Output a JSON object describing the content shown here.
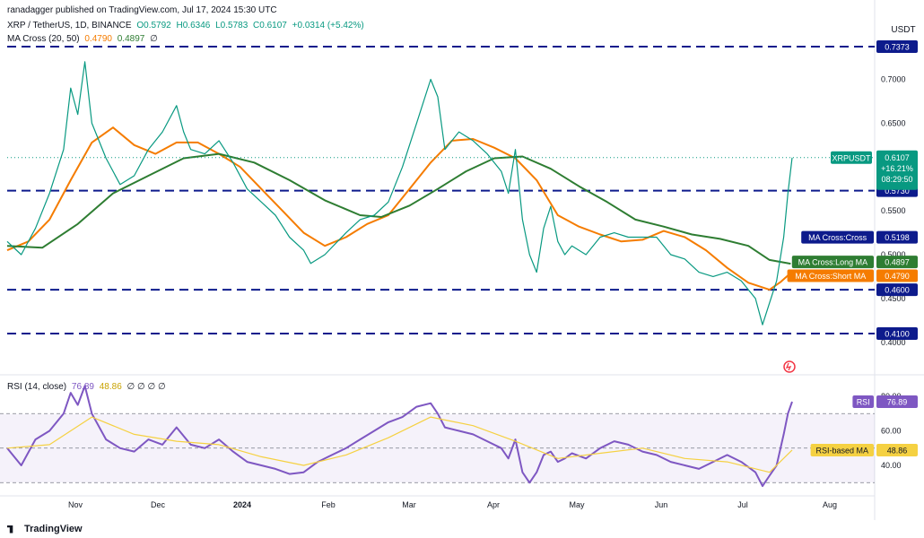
{
  "header": {
    "publisher": "ranadagger published on TradingView.com, Jul 17, 2024 15:30 UTC",
    "symbol": "XRP / TetherUS, 1D, BINANCE",
    "open": "O0.5792",
    "high": "H0.6346",
    "low": "L0.5783",
    "close": "C0.6107",
    "change": "+0.0314 (+5.42%)",
    "ma_label": "MA Cross (20, 50)",
    "ma_short": "0.4790",
    "ma_long": "0.4897",
    "ma_zero": "∅",
    "currency": "USDT"
  },
  "rsi_header": {
    "label": "RSI (14, close)",
    "rsi": "76.89",
    "rsi_ma": "48.86",
    "zeros": "∅ ∅ ∅ ∅"
  },
  "logo": {
    "text": "TradingView"
  },
  "colors": {
    "up": "#089981",
    "down": "#f23645",
    "ma_short": "#f57c00",
    "ma_long": "#2e7d32",
    "rsi": "#7e57c2",
    "rsi_ma": "#f5d142",
    "level_line": "#0d1b8c",
    "price_tag": "#0d1b8c"
  },
  "chart_data": [
    {
      "type": "candlestick",
      "title": "XRP / TetherUS, 1D, BINANCE",
      "x_tick_labels": [
        "Nov",
        "Dec",
        "2024",
        "Feb",
        "Mar",
        "Apr",
        "May",
        "Jun",
        "Jul",
        "Aug"
      ],
      "y_tick_labels": [
        "0.4000",
        "0.4500",
        "0.5000",
        "0.5500",
        "0.6000",
        "0.6500",
        "0.7000"
      ],
      "ylim": [
        0.375,
        0.748
      ],
      "support_resistance_levels": [
        {
          "label": "0.7373",
          "value": 0.7373
        },
        {
          "label": "0.5730",
          "value": 0.573
        },
        {
          "label": "0.4600",
          "value": 0.46
        },
        {
          "label": "0.4100",
          "value": 0.41
        }
      ],
      "price_labels": [
        {
          "label": "XRPUSDT",
          "value": "0.6107",
          "change": "+16.21%",
          "countdown": "08:29:50"
        },
        {
          "label": "MA Cross:Cross",
          "value": "0.5198"
        },
        {
          "label": "MA Cross:Long MA",
          "value": "0.4897"
        },
        {
          "label": "MA Cross:Short MA",
          "value": "0.4790"
        }
      ],
      "grid": false,
      "series": [
        {
          "name": "MA Cross Short MA (20)",
          "kind": "line",
          "points": [
            [
              0,
              0.505
            ],
            [
              15,
              0.515
            ],
            [
              30,
              0.54
            ],
            [
              45,
              0.585
            ],
            [
              60,
              0.628
            ],
            [
              75,
              0.645
            ],
            [
              90,
              0.625
            ],
            [
              105,
              0.615
            ],
            [
              120,
              0.628
            ],
            [
              135,
              0.628
            ],
            [
              150,
              0.615
            ],
            [
              165,
              0.6
            ],
            [
              180,
              0.575
            ],
            [
              195,
              0.55
            ],
            [
              210,
              0.525
            ],
            [
              225,
              0.51
            ],
            [
              240,
              0.52
            ],
            [
              255,
              0.535
            ],
            [
              270,
              0.545
            ],
            [
              285,
              0.575
            ],
            [
              300,
              0.605
            ],
            [
              315,
              0.63
            ],
            [
              330,
              0.632
            ],
            [
              345,
              0.622
            ],
            [
              360,
              0.61
            ],
            [
              375,
              0.585
            ],
            [
              390,
              0.545
            ],
            [
              405,
              0.532
            ],
            [
              420,
              0.523
            ],
            [
              435,
              0.515
            ],
            [
              450,
              0.517
            ],
            [
              465,
              0.527
            ],
            [
              480,
              0.52
            ],
            [
              495,
              0.505
            ],
            [
              510,
              0.485
            ],
            [
              525,
              0.468
            ],
            [
              540,
              0.46
            ],
            [
              548,
              0.469
            ],
            [
              555,
              0.479
            ]
          ]
        },
        {
          "name": "MA Cross Long MA (50)",
          "kind": "line",
          "points": [
            [
              0,
              0.51
            ],
            [
              25,
              0.508
            ],
            [
              50,
              0.535
            ],
            [
              75,
              0.57
            ],
            [
              100,
              0.59
            ],
            [
              125,
              0.61
            ],
            [
              150,
              0.615
            ],
            [
              175,
              0.605
            ],
            [
              200,
              0.585
            ],
            [
              225,
              0.562
            ],
            [
              250,
              0.545
            ],
            [
              265,
              0.543
            ],
            [
              285,
              0.556
            ],
            [
              305,
              0.575
            ],
            [
              325,
              0.595
            ],
            [
              345,
              0.61
            ],
            [
              365,
              0.612
            ],
            [
              385,
              0.598
            ],
            [
              405,
              0.578
            ],
            [
              425,
              0.56
            ],
            [
              445,
              0.54
            ],
            [
              465,
              0.532
            ],
            [
              485,
              0.523
            ],
            [
              505,
              0.518
            ],
            [
              525,
              0.51
            ],
            [
              540,
              0.494
            ],
            [
              555,
              0.4897
            ]
          ]
        },
        {
          "name": "XRP / TetherUS",
          "kind": "price-path",
          "points": [
            [
              0,
              0.515
            ],
            [
              10,
              0.5
            ],
            [
              20,
              0.53
            ],
            [
              30,
              0.57
            ],
            [
              40,
              0.62
            ],
            [
              45,
              0.69
            ],
            [
              50,
              0.66
            ],
            [
              55,
              0.72
            ],
            [
              60,
              0.65
            ],
            [
              70,
              0.61
            ],
            [
              80,
              0.58
            ],
            [
              90,
              0.59
            ],
            [
              100,
              0.62
            ],
            [
              110,
              0.64
            ],
            [
              120,
              0.67
            ],
            [
              125,
              0.64
            ],
            [
              130,
              0.62
            ],
            [
              140,
              0.615
            ],
            [
              150,
              0.63
            ],
            [
              160,
              0.605
            ],
            [
              170,
              0.575
            ],
            [
              180,
              0.56
            ],
            [
              190,
              0.545
            ],
            [
              200,
              0.52
            ],
            [
              210,
              0.505
            ],
            [
              215,
              0.49
            ],
            [
              225,
              0.5
            ],
            [
              240,
              0.525
            ],
            [
              250,
              0.54
            ],
            [
              260,
              0.545
            ],
            [
              270,
              0.56
            ],
            [
              280,
              0.6
            ],
            [
              290,
              0.65
            ],
            [
              300,
              0.7
            ],
            [
              305,
              0.68
            ],
            [
              310,
              0.62
            ],
            [
              320,
              0.64
            ],
            [
              330,
              0.63
            ],
            [
              340,
              0.615
            ],
            [
              350,
              0.595
            ],
            [
              355,
              0.57
            ],
            [
              360,
              0.62
            ],
            [
              365,
              0.54
            ],
            [
              370,
              0.5
            ],
            [
              375,
              0.48
            ],
            [
              380,
              0.53
            ],
            [
              385,
              0.555
            ],
            [
              390,
              0.515
            ],
            [
              395,
              0.5
            ],
            [
              400,
              0.51
            ],
            [
              410,
              0.5
            ],
            [
              420,
              0.52
            ],
            [
              430,
              0.525
            ],
            [
              440,
              0.52
            ],
            [
              450,
              0.52
            ],
            [
              460,
              0.52
            ],
            [
              470,
              0.5
            ],
            [
              480,
              0.495
            ],
            [
              490,
              0.48
            ],
            [
              500,
              0.475
            ],
            [
              510,
              0.48
            ],
            [
              520,
              0.47
            ],
            [
              530,
              0.45
            ],
            [
              535,
              0.42
            ],
            [
              540,
              0.445
            ],
            [
              545,
              0.47
            ],
            [
              550,
              0.52
            ],
            [
              553,
              0.57
            ],
            [
              556,
              0.6107
            ]
          ]
        }
      ]
    },
    {
      "type": "line",
      "title": "RSI (14, close)",
      "y_tick_labels": [
        "40.00",
        "60.00",
        "80.00"
      ],
      "ylim": [
        23,
        91
      ],
      "bands": [
        70,
        50,
        30
      ],
      "value_labels": [
        {
          "label": "RSI",
          "value": "76.89"
        },
        {
          "label": "RSI-based MA",
          "value": "48.86"
        }
      ],
      "series": [
        {
          "name": "RSI",
          "points": [
            [
              0,
              50
            ],
            [
              10,
              40
            ],
            [
              20,
              55
            ],
            [
              30,
              60
            ],
            [
              40,
              70
            ],
            [
              45,
              82
            ],
            [
              50,
              75
            ],
            [
              55,
              86
            ],
            [
              60,
              70
            ],
            [
              70,
              55
            ],
            [
              80,
              50
            ],
            [
              90,
              48
            ],
            [
              100,
              55
            ],
            [
              110,
              52
            ],
            [
              120,
              62
            ],
            [
              130,
              52
            ],
            [
              140,
              50
            ],
            [
              150,
              55
            ],
            [
              160,
              48
            ],
            [
              170,
              42
            ],
            [
              180,
              40
            ],
            [
              190,
              38
            ],
            [
              200,
              35
            ],
            [
              210,
              36
            ],
            [
              220,
              42
            ],
            [
              230,
              46
            ],
            [
              240,
              50
            ],
            [
              250,
              55
            ],
            [
              260,
              60
            ],
            [
              270,
              65
            ],
            [
              280,
              68
            ],
            [
              290,
              74
            ],
            [
              300,
              76
            ],
            [
              305,
              70
            ],
            [
              310,
              62
            ],
            [
              320,
              60
            ],
            [
              330,
              58
            ],
            [
              340,
              54
            ],
            [
              350,
              50
            ],
            [
              355,
              44
            ],
            [
              360,
              55
            ],
            [
              365,
              36
            ],
            [
              370,
              30
            ],
            [
              375,
              36
            ],
            [
              380,
              46
            ],
            [
              385,
              48
            ],
            [
              390,
              42
            ],
            [
              395,
              44
            ],
            [
              400,
              47
            ],
            [
              410,
              44
            ],
            [
              420,
              50
            ],
            [
              430,
              54
            ],
            [
              440,
              52
            ],
            [
              450,
              48
            ],
            [
              460,
              46
            ],
            [
              470,
              42
            ],
            [
              480,
              40
            ],
            [
              490,
              38
            ],
            [
              500,
              42
            ],
            [
              510,
              46
            ],
            [
              520,
              42
            ],
            [
              530,
              36
            ],
            [
              535,
              28
            ],
            [
              540,
              34
            ],
            [
              545,
              40
            ],
            [
              550,
              58
            ],
            [
              553,
              70
            ],
            [
              556,
              76.89
            ]
          ]
        },
        {
          "name": "RSI-based MA",
          "points": [
            [
              0,
              50
            ],
            [
              30,
              52
            ],
            [
              60,
              68
            ],
            [
              90,
              58
            ],
            [
              120,
              54
            ],
            [
              150,
              52
            ],
            [
              180,
              45
            ],
            [
              210,
              40
            ],
            [
              240,
              46
            ],
            [
              270,
              56
            ],
            [
              300,
              68
            ],
            [
              330,
              63
            ],
            [
              360,
              54
            ],
            [
              390,
              44
            ],
            [
              420,
              47
            ],
            [
              450,
              50
            ],
            [
              480,
              44
            ],
            [
              510,
              42
            ],
            [
              540,
              36
            ],
            [
              556,
              48.86
            ]
          ]
        }
      ]
    }
  ]
}
